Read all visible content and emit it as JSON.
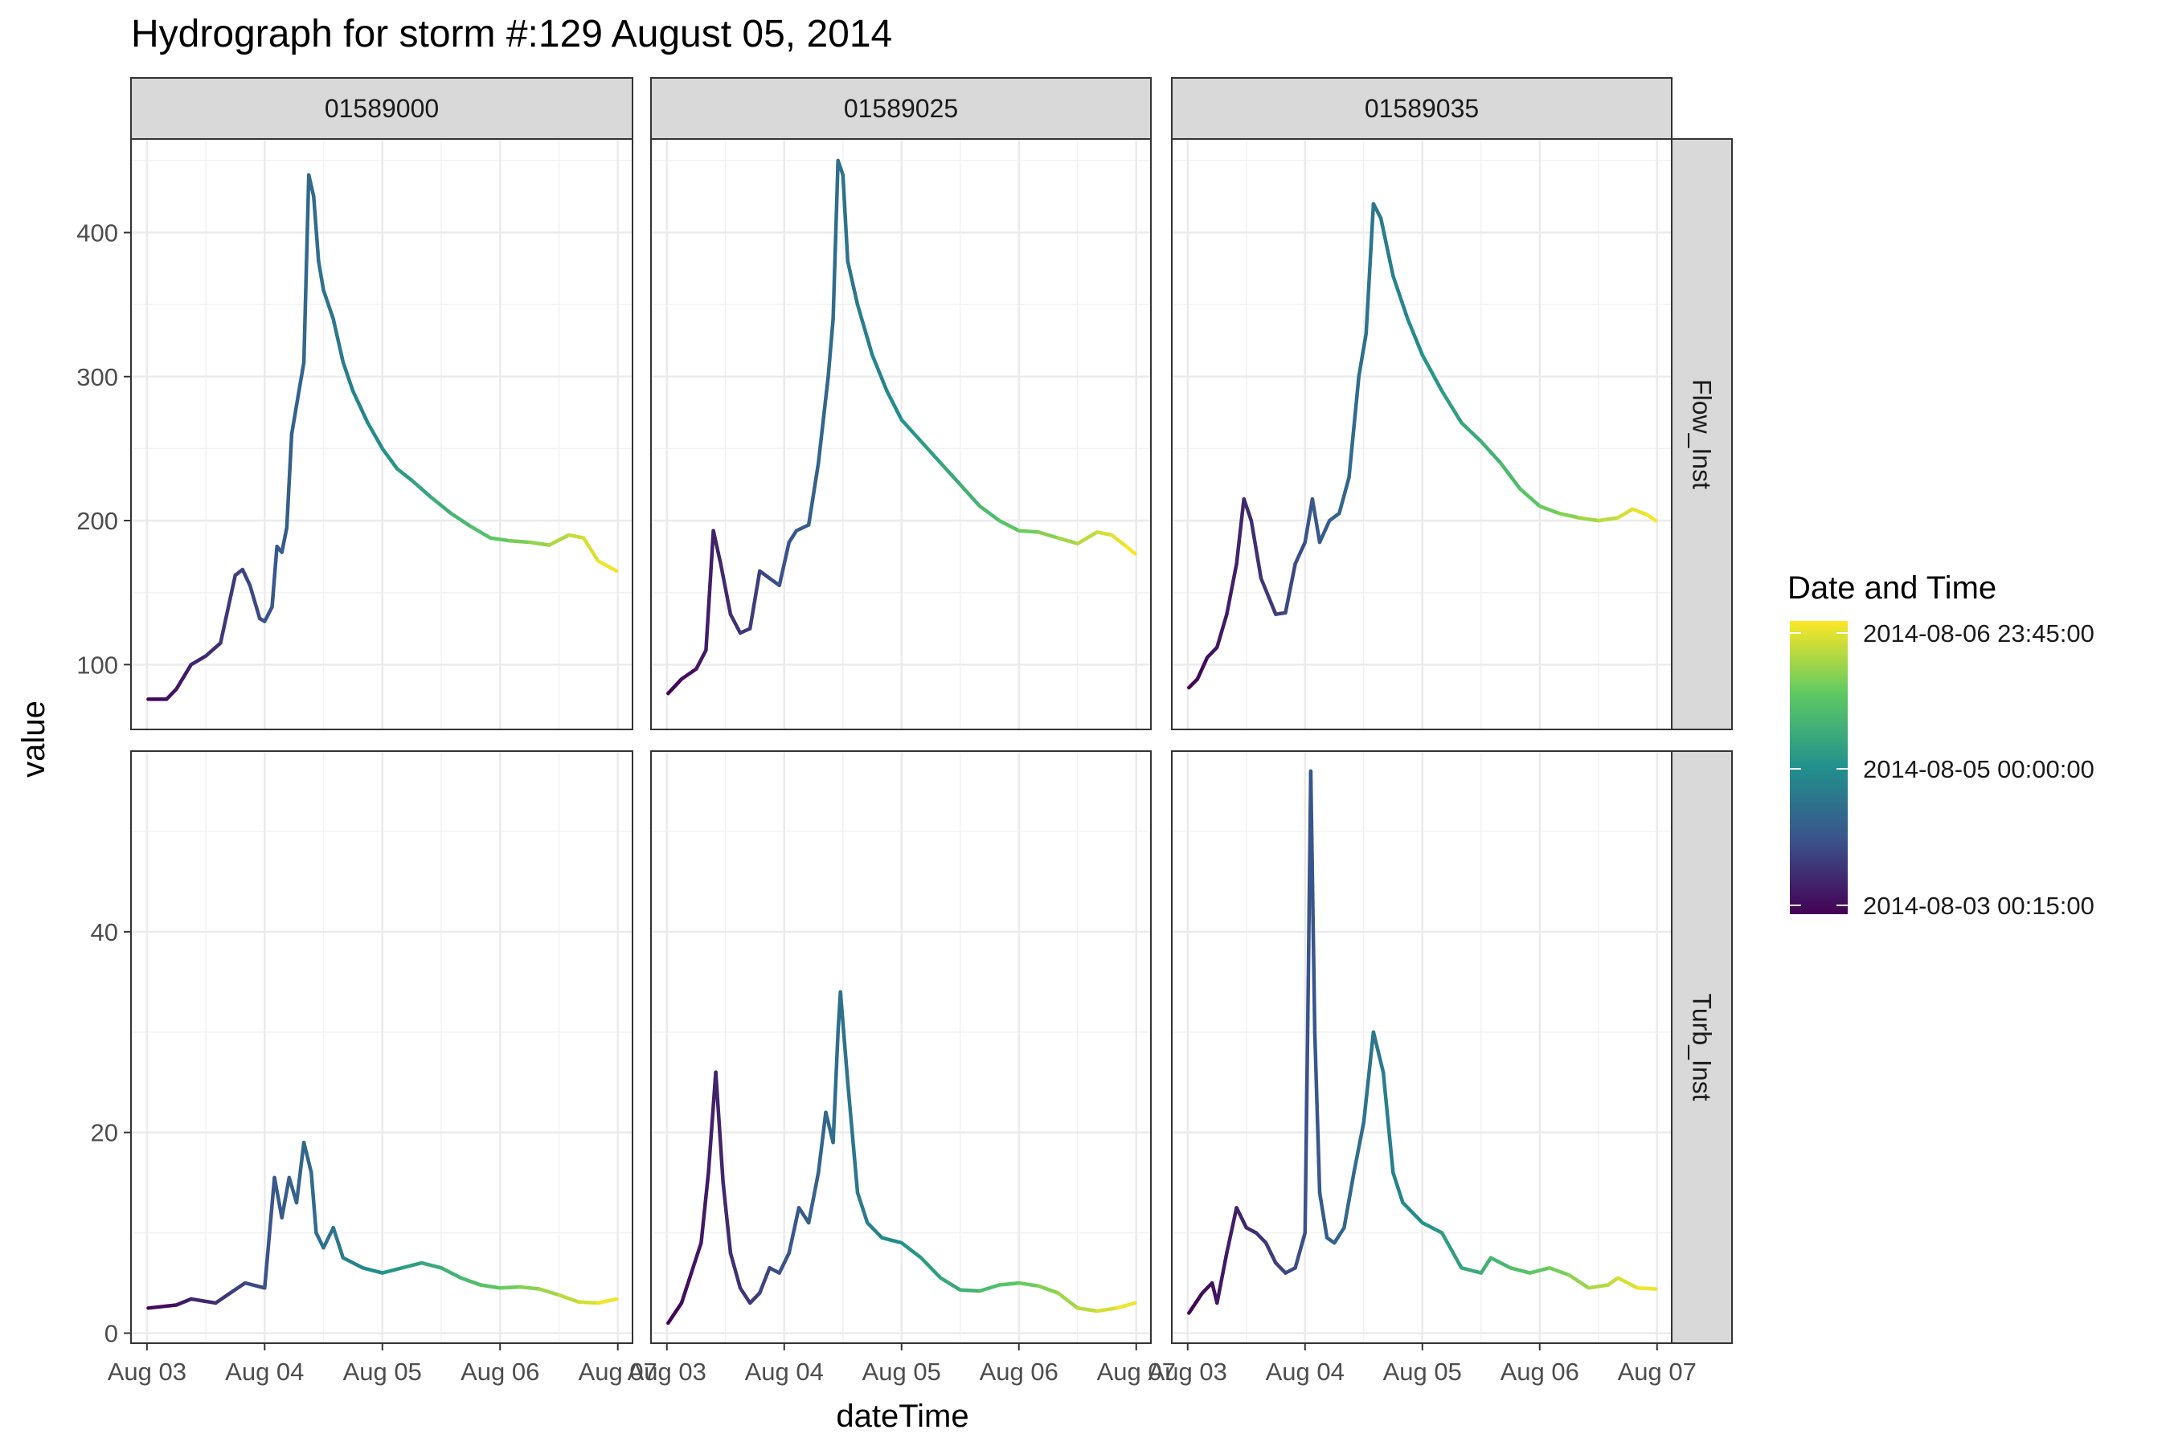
{
  "chart_data": {
    "type": "line",
    "title": "Hydrograph for storm #:129   August 05, 2014",
    "xlabel": "dateTime",
    "ylabel": "value",
    "legend": {
      "title": "Date and Time",
      "placement": "right",
      "labels": [
        "2014-08-06 23:45:00",
        "2014-08-05 00:00:00",
        "2014-08-03 00:15:00"
      ],
      "values": [
        "2014-08-06T23:45",
        "2014-08-05T00:00",
        "2014-08-03T00:15"
      ],
      "colors": [
        "#440154",
        "#3b528b",
        "#21908d",
        "#5dc963",
        "#fde725"
      ]
    },
    "columns": [
      "01589000",
      "01589025",
      "01589035"
    ],
    "rows": [
      "Flow_Inst",
      "Turb_Inst"
    ],
    "x_ticks": [
      {
        "date": "2014-08-03T00:00",
        "label": "Aug 03"
      },
      {
        "date": "2014-08-04T00:00",
        "label": "Aug 04"
      },
      {
        "date": "2014-08-05T00:00",
        "label": "Aug 05"
      },
      {
        "date": "2014-08-06T00:00",
        "label": "Aug 06"
      },
      {
        "date": "2014-08-07T00:00",
        "label": "Aug 07"
      }
    ],
    "xlim": [
      "2014-08-02T20:45",
      "2014-08-07T03:00"
    ],
    "y_axes": {
      "Flow_Inst": {
        "ylim": [
          55,
          465
        ],
        "ticks": [
          100,
          200,
          300,
          400
        ]
      },
      "Turb_Inst": {
        "ylim": [
          -1,
          58
        ],
        "ticks": [
          0,
          20,
          40
        ]
      }
    },
    "grid": true,
    "panels": [
      {
        "column": "01589000",
        "row": "Flow_Inst",
        "points": [
          [
            "2014-08-03T00:15",
            76
          ],
          [
            "2014-08-03T04:00",
            76
          ],
          [
            "2014-08-03T06:00",
            83
          ],
          [
            "2014-08-03T09:00",
            100
          ],
          [
            "2014-08-03T12:00",
            106
          ],
          [
            "2014-08-03T15:00",
            115
          ],
          [
            "2014-08-03T18:00",
            162
          ],
          [
            "2014-08-03T19:30",
            166
          ],
          [
            "2014-08-03T21:00",
            155
          ],
          [
            "2014-08-03T23:00",
            132
          ],
          [
            "2014-08-04T00:00",
            130
          ],
          [
            "2014-08-04T01:30",
            140
          ],
          [
            "2014-08-04T02:30",
            182
          ],
          [
            "2014-08-04T03:30",
            178
          ],
          [
            "2014-08-04T04:30",
            195
          ],
          [
            "2014-08-04T05:30",
            260
          ],
          [
            "2014-08-04T07:00",
            290
          ],
          [
            "2014-08-04T08:00",
            310
          ],
          [
            "2014-08-04T09:00",
            440
          ],
          [
            "2014-08-04T10:00",
            425
          ],
          [
            "2014-08-04T11:00",
            380
          ],
          [
            "2014-08-04T12:00",
            360
          ],
          [
            "2014-08-04T14:00",
            340
          ],
          [
            "2014-08-04T16:00",
            310
          ],
          [
            "2014-08-04T18:00",
            290
          ],
          [
            "2014-08-04T21:00",
            268
          ],
          [
            "2014-08-05T00:00",
            250
          ],
          [
            "2014-08-05T03:00",
            236
          ],
          [
            "2014-08-05T06:00",
            228
          ],
          [
            "2014-08-05T10:00",
            216
          ],
          [
            "2014-08-05T14:00",
            205
          ],
          [
            "2014-08-05T18:00",
            196
          ],
          [
            "2014-08-05T22:00",
            188
          ],
          [
            "2014-08-06T02:00",
            186
          ],
          [
            "2014-08-06T06:00",
            185
          ],
          [
            "2014-08-06T10:00",
            183
          ],
          [
            "2014-08-06T14:00",
            190
          ],
          [
            "2014-08-06T17:00",
            188
          ],
          [
            "2014-08-06T20:00",
            172
          ],
          [
            "2014-08-06T23:45",
            165
          ]
        ]
      },
      {
        "column": "01589025",
        "row": "Flow_Inst",
        "points": [
          [
            "2014-08-03T00:15",
            80
          ],
          [
            "2014-08-03T03:00",
            90
          ],
          [
            "2014-08-03T06:00",
            97
          ],
          [
            "2014-08-03T08:00",
            110
          ],
          [
            "2014-08-03T09:30",
            193
          ],
          [
            "2014-08-03T11:00",
            170
          ],
          [
            "2014-08-03T13:00",
            135
          ],
          [
            "2014-08-03T15:00",
            122
          ],
          [
            "2014-08-03T17:00",
            125
          ],
          [
            "2014-08-03T19:00",
            165
          ],
          [
            "2014-08-03T21:00",
            160
          ],
          [
            "2014-08-03T23:00",
            155
          ],
          [
            "2014-08-04T01:00",
            185
          ],
          [
            "2014-08-04T02:30",
            193
          ],
          [
            "2014-08-04T05:00",
            197
          ],
          [
            "2014-08-04T07:00",
            240
          ],
          [
            "2014-08-04T09:00",
            300
          ],
          [
            "2014-08-04T10:00",
            340
          ],
          [
            "2014-08-04T11:00",
            450
          ],
          [
            "2014-08-04T12:00",
            440
          ],
          [
            "2014-08-04T13:00",
            380
          ],
          [
            "2014-08-04T15:00",
            350
          ],
          [
            "2014-08-04T18:00",
            315
          ],
          [
            "2014-08-04T21:00",
            290
          ],
          [
            "2014-08-05T00:00",
            270
          ],
          [
            "2014-08-05T04:00",
            255
          ],
          [
            "2014-08-05T08:00",
            240
          ],
          [
            "2014-08-05T12:00",
            225
          ],
          [
            "2014-08-05T16:00",
            210
          ],
          [
            "2014-08-05T20:00",
            200
          ],
          [
            "2014-08-06T00:00",
            193
          ],
          [
            "2014-08-06T04:00",
            192
          ],
          [
            "2014-08-06T08:00",
            188
          ],
          [
            "2014-08-06T12:00",
            184
          ],
          [
            "2014-08-06T16:00",
            192
          ],
          [
            "2014-08-06T19:00",
            190
          ],
          [
            "2014-08-06T22:00",
            182
          ],
          [
            "2014-08-06T23:45",
            177
          ]
        ]
      },
      {
        "column": "01589035",
        "row": "Flow_Inst",
        "points": [
          [
            "2014-08-03T00:15",
            84
          ],
          [
            "2014-08-03T02:00",
            90
          ],
          [
            "2014-08-03T04:00",
            105
          ],
          [
            "2014-08-03T06:00",
            112
          ],
          [
            "2014-08-03T08:00",
            135
          ],
          [
            "2014-08-03T10:00",
            170
          ],
          [
            "2014-08-03T11:30",
            215
          ],
          [
            "2014-08-03T13:00",
            200
          ],
          [
            "2014-08-03T15:00",
            160
          ],
          [
            "2014-08-03T18:00",
            135
          ],
          [
            "2014-08-03T20:00",
            136
          ],
          [
            "2014-08-03T22:00",
            170
          ],
          [
            "2014-08-04T00:00",
            185
          ],
          [
            "2014-08-04T01:30",
            215
          ],
          [
            "2014-08-04T03:00",
            185
          ],
          [
            "2014-08-04T05:00",
            200
          ],
          [
            "2014-08-04T07:00",
            205
          ],
          [
            "2014-08-04T09:00",
            230
          ],
          [
            "2014-08-04T11:00",
            300
          ],
          [
            "2014-08-04T12:30",
            330
          ],
          [
            "2014-08-04T14:00",
            420
          ],
          [
            "2014-08-04T15:30",
            410
          ],
          [
            "2014-08-04T18:00",
            370
          ],
          [
            "2014-08-04T21:00",
            340
          ],
          [
            "2014-08-05T00:00",
            315
          ],
          [
            "2014-08-05T04:00",
            290
          ],
          [
            "2014-08-05T08:00",
            268
          ],
          [
            "2014-08-05T12:00",
            255
          ],
          [
            "2014-08-05T16:00",
            240
          ],
          [
            "2014-08-05T20:00",
            222
          ],
          [
            "2014-08-06T00:00",
            210
          ],
          [
            "2014-08-06T04:00",
            205
          ],
          [
            "2014-08-06T08:00",
            202
          ],
          [
            "2014-08-06T12:00",
            200
          ],
          [
            "2014-08-06T16:00",
            202
          ],
          [
            "2014-08-06T19:00",
            208
          ],
          [
            "2014-08-06T22:00",
            204
          ],
          [
            "2014-08-06T23:45",
            200
          ]
        ]
      },
      {
        "column": "01589000",
        "row": "Turb_Inst",
        "points": [
          [
            "2014-08-03T00:15",
            2.5
          ],
          [
            "2014-08-03T06:00",
            2.8
          ],
          [
            "2014-08-03T09:00",
            3.4
          ],
          [
            "2014-08-03T14:00",
            3.0
          ],
          [
            "2014-08-03T17:00",
            4.0
          ],
          [
            "2014-08-03T20:00",
            5.0
          ],
          [
            "2014-08-04T00:00",
            4.5
          ],
          [
            "2014-08-04T01:00",
            10.0
          ],
          [
            "2014-08-04T02:00",
            15.5
          ],
          [
            "2014-08-04T03:30",
            11.5
          ],
          [
            "2014-08-04T05:00",
            15.5
          ],
          [
            "2014-08-04T06:30",
            13.0
          ],
          [
            "2014-08-04T08:00",
            19.0
          ],
          [
            "2014-08-04T09:30",
            16.0
          ],
          [
            "2014-08-04T10:30",
            10.0
          ],
          [
            "2014-08-04T12:00",
            8.5
          ],
          [
            "2014-08-04T14:00",
            10.5
          ],
          [
            "2014-08-04T16:00",
            7.5
          ],
          [
            "2014-08-04T20:00",
            6.5
          ],
          [
            "2014-08-05T00:00",
            6.0
          ],
          [
            "2014-08-05T04:00",
            6.5
          ],
          [
            "2014-08-05T08:00",
            7.0
          ],
          [
            "2014-08-05T12:00",
            6.5
          ],
          [
            "2014-08-05T16:00",
            5.5
          ],
          [
            "2014-08-05T20:00",
            4.8
          ],
          [
            "2014-08-06T00:00",
            4.5
          ],
          [
            "2014-08-06T04:00",
            4.6
          ],
          [
            "2014-08-06T08:00",
            4.4
          ],
          [
            "2014-08-06T12:00",
            3.8
          ],
          [
            "2014-08-06T16:00",
            3.1
          ],
          [
            "2014-08-06T20:00",
            3.0
          ],
          [
            "2014-08-06T23:45",
            3.4
          ]
        ]
      },
      {
        "column": "01589025",
        "row": "Turb_Inst",
        "points": [
          [
            "2014-08-03T00:15",
            1.0
          ],
          [
            "2014-08-03T03:00",
            3.0
          ],
          [
            "2014-08-03T05:00",
            6.0
          ],
          [
            "2014-08-03T07:00",
            9.0
          ],
          [
            "2014-08-03T08:30",
            16.0
          ],
          [
            "2014-08-03T10:00",
            26.0
          ],
          [
            "2014-08-03T11:30",
            15.0
          ],
          [
            "2014-08-03T13:00",
            8.0
          ],
          [
            "2014-08-03T15:00",
            4.5
          ],
          [
            "2014-08-03T17:00",
            3.0
          ],
          [
            "2014-08-03T19:00",
            4.0
          ],
          [
            "2014-08-03T21:00",
            6.5
          ],
          [
            "2014-08-03T23:00",
            6.0
          ],
          [
            "2014-08-04T01:00",
            8.0
          ],
          [
            "2014-08-04T03:00",
            12.5
          ],
          [
            "2014-08-04T05:00",
            11.0
          ],
          [
            "2014-08-04T07:00",
            16.0
          ],
          [
            "2014-08-04T08:30",
            22.0
          ],
          [
            "2014-08-04T10:00",
            19.0
          ],
          [
            "2014-08-04T11:00",
            30.0
          ],
          [
            "2014-08-04T11:30",
            34.0
          ],
          [
            "2014-08-04T13:00",
            25.0
          ],
          [
            "2014-08-04T15:00",
            14.0
          ],
          [
            "2014-08-04T17:00",
            11.0
          ],
          [
            "2014-08-04T20:00",
            9.5
          ],
          [
            "2014-08-05T00:00",
            9.0
          ],
          [
            "2014-08-05T04:00",
            7.5
          ],
          [
            "2014-08-05T08:00",
            5.5
          ],
          [
            "2014-08-05T12:00",
            4.3
          ],
          [
            "2014-08-05T16:00",
            4.2
          ],
          [
            "2014-08-05T20:00",
            4.8
          ],
          [
            "2014-08-06T00:00",
            5.0
          ],
          [
            "2014-08-06T04:00",
            4.7
          ],
          [
            "2014-08-06T08:00",
            4.0
          ],
          [
            "2014-08-06T12:00",
            2.5
          ],
          [
            "2014-08-06T16:00",
            2.2
          ],
          [
            "2014-08-06T20:00",
            2.5
          ],
          [
            "2014-08-06T23:45",
            3.0
          ]
        ]
      },
      {
        "column": "01589035",
        "row": "Turb_Inst",
        "points": [
          [
            "2014-08-03T00:15",
            2.0
          ],
          [
            "2014-08-03T03:00",
            4.0
          ],
          [
            "2014-08-03T05:00",
            5.0
          ],
          [
            "2014-08-03T06:00",
            3.0
          ],
          [
            "2014-08-03T08:00",
            8.0
          ],
          [
            "2014-08-03T10:00",
            12.5
          ],
          [
            "2014-08-03T12:00",
            10.5
          ],
          [
            "2014-08-03T14:00",
            10.0
          ],
          [
            "2014-08-03T16:00",
            9.0
          ],
          [
            "2014-08-03T18:00",
            7.0
          ],
          [
            "2014-08-03T20:00",
            6.0
          ],
          [
            "2014-08-03T22:00",
            6.5
          ],
          [
            "2014-08-04T00:00",
            10.0
          ],
          [
            "2014-08-04T00:40",
            35.0
          ],
          [
            "2014-08-04T01:10",
            56.0
          ],
          [
            "2014-08-04T02:00",
            30.0
          ],
          [
            "2014-08-04T03:00",
            14.0
          ],
          [
            "2014-08-04T04:30",
            9.5
          ],
          [
            "2014-08-04T06:00",
            9.0
          ],
          [
            "2014-08-04T08:00",
            10.5
          ],
          [
            "2014-08-04T10:00",
            16.0
          ],
          [
            "2014-08-04T12:00",
            21.0
          ],
          [
            "2014-08-04T14:00",
            30.0
          ],
          [
            "2014-08-04T16:00",
            26.0
          ],
          [
            "2014-08-04T18:00",
            16.0
          ],
          [
            "2014-08-04T20:00",
            13.0
          ],
          [
            "2014-08-04T22:00",
            12.0
          ],
          [
            "2014-08-05T00:00",
            11.0
          ],
          [
            "2014-08-05T04:00",
            10.0
          ],
          [
            "2014-08-05T08:00",
            6.5
          ],
          [
            "2014-08-05T12:00",
            6.0
          ],
          [
            "2014-08-05T14:00",
            7.5
          ],
          [
            "2014-08-05T18:00",
            6.5
          ],
          [
            "2014-08-05T22:00",
            6.0
          ],
          [
            "2014-08-06T02:00",
            6.5
          ],
          [
            "2014-08-06T06:00",
            5.8
          ],
          [
            "2014-08-06T10:00",
            4.5
          ],
          [
            "2014-08-06T14:00",
            4.8
          ],
          [
            "2014-08-06T16:00",
            5.5
          ],
          [
            "2014-08-06T20:00",
            4.5
          ],
          [
            "2014-08-06T23:45",
            4.4
          ]
        ]
      }
    ]
  }
}
